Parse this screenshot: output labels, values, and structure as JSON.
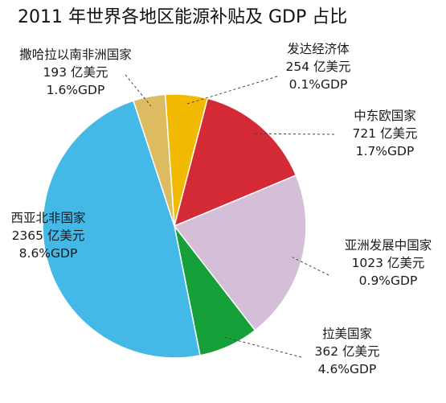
{
  "chart_data": {
    "type": "pie",
    "title": "2011 年世界各地区能源补贴及 GDP 占比",
    "unit": "亿美元",
    "slices": [
      {
        "name": "发达经济体",
        "value": 254,
        "value_label": "254 亿美元",
        "gdp_label": "0.1%GDP",
        "color": "#F1BA00"
      },
      {
        "name": "中东欧国家",
        "value": 721,
        "value_label": "721 亿美元",
        "gdp_label": "1.7%GDP",
        "color": "#D42A35"
      },
      {
        "name": "亚洲发展中国家",
        "value": 1023,
        "value_label": "1023 亿美元",
        "gdp_label": "0.9%GDP",
        "color": "#D5BED8"
      },
      {
        "name": "拉美国家",
        "value": 362,
        "value_label": "362 亿美元",
        "gdp_label": "4.6%GDP",
        "color": "#16A03A"
      },
      {
        "name": "西亚北非国家",
        "value": 2365,
        "value_label": "2365 亿美元",
        "gdp_label": "8.6%GDP",
        "color": "#44B8E6"
      },
      {
        "name": "撒哈拉以南非洲国家",
        "value": 193,
        "value_label": "193 亿美元",
        "gdp_label": "1.6%GDP",
        "color": "#DDBB60"
      }
    ]
  }
}
